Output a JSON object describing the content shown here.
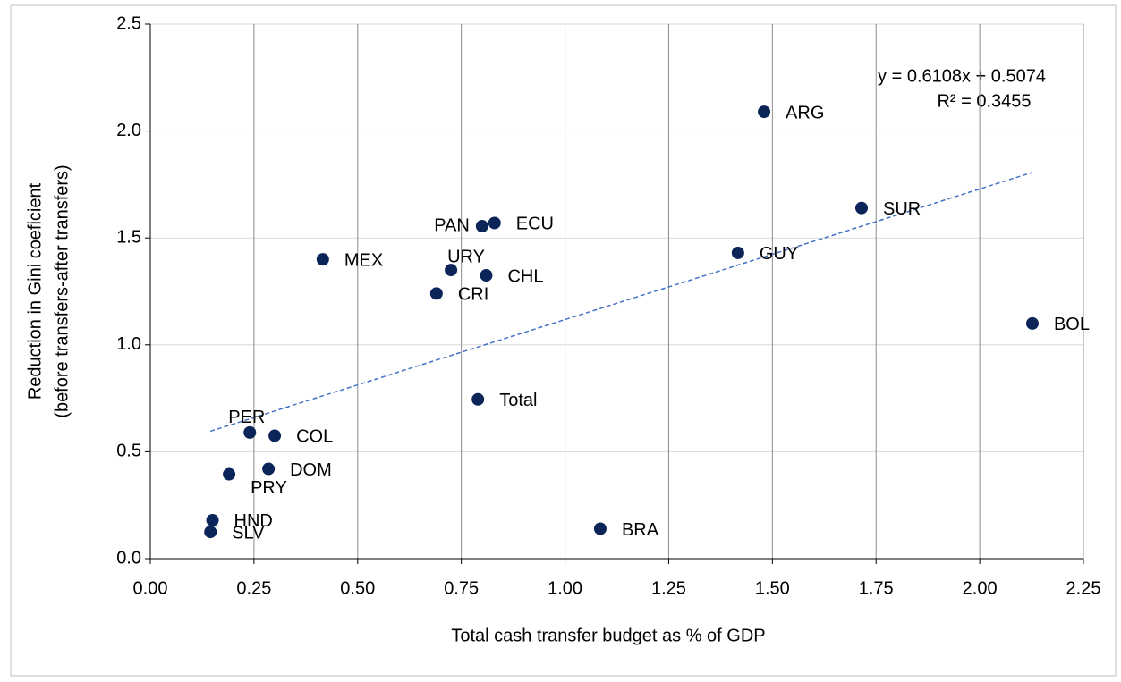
{
  "chart_data": {
    "type": "scatter",
    "x_label": "Total cash transfer budget as % of GDP",
    "y_label": [
      "Reduction in Gini coeficient",
      "(before transfers-after transfers)"
    ],
    "labels": [
      "ARG",
      "SUR",
      "GUY",
      "BOL",
      "PAN",
      "ECU",
      "MEX",
      "URY",
      "CHL",
      "CRI",
      "Total",
      "PER",
      "COL",
      "DOM",
      "PRY",
      "HND",
      "SLV",
      "BRA"
    ],
    "x": [
      1.48,
      1.715,
      1.417,
      2.127,
      0.8,
      0.83,
      0.416,
      0.725,
      0.81,
      0.69,
      0.79,
      0.24,
      0.3,
      0.285,
      0.19,
      0.15,
      0.145,
      1.085
    ],
    "values": [
      2.09,
      1.64,
      1.43,
      1.1,
      1.555,
      1.57,
      1.4,
      1.35,
      1.325,
      1.24,
      0.745,
      0.59,
      0.575,
      0.42,
      0.395,
      0.18,
      0.125,
      0.14
    ],
    "color": "#0b2559",
    "trendline": {
      "slope": 0.6108,
      "intercept": 0.5074,
      "color": "#4472c4",
      "equation": "y = 0.6108x + 0.5074",
      "r2": "R² = 0.3455"
    },
    "xlim": [
      0,
      2.25
    ],
    "ylim": [
      0,
      2.5
    ],
    "xticks": [
      {
        "value": 0,
        "label": "0.00"
      },
      {
        "value": 0.25,
        "label": "0.25"
      },
      {
        "value": 0.5,
        "label": "0.50"
      },
      {
        "value": 0.75,
        "label": "0.75"
      },
      {
        "value": 1,
        "label": "1.00"
      },
      {
        "value": 1.25,
        "label": "1.25"
      },
      {
        "value": 1.5,
        "label": "1.50"
      },
      {
        "value": 1.75,
        "label": "1.75"
      },
      {
        "value": 2,
        "label": "2.00"
      },
      {
        "value": 2.25,
        "label": "2.25"
      }
    ],
    "yticks": [
      {
        "value": 0,
        "label": "0.0"
      },
      {
        "value": 0.5,
        "label": "0.5"
      },
      {
        "value": 1,
        "label": "1.0"
      },
      {
        "value": 1.5,
        "label": "1.5"
      },
      {
        "value": 2,
        "label": "2.0"
      },
      {
        "value": 2.5,
        "label": "2.5"
      }
    ],
    "grid": true
  }
}
